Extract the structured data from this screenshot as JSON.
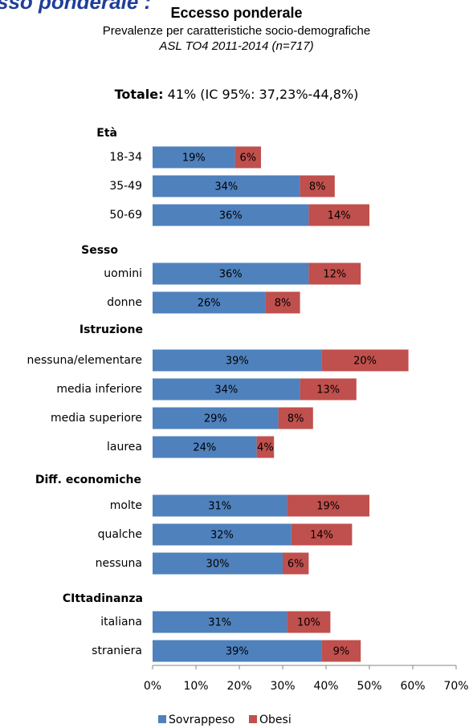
{
  "banner": "sso ponderale :",
  "chart_data": {
    "type": "bar",
    "orientation": "horizontal",
    "stacked": true,
    "title": "Eccesso ponderale",
    "subtitle": "Prevalenze per caratteristiche socio-demografiche",
    "subtitle2": "ASL TO4 2011-2014 (n=717)",
    "total_label": "Totale:",
    "total_value": "41% (IC 95%: 37,23%-44,8%)",
    "xlim": [
      0,
      70
    ],
    "x_ticks": [
      "0%",
      "10%",
      "20%",
      "30%",
      "40%",
      "50%",
      "60%",
      "70%"
    ],
    "legend_position": "bottom",
    "series": [
      {
        "name": "Sovrappeso",
        "color": "#4f81bd"
      },
      {
        "name": "Obesi",
        "color": "#c0504d"
      }
    ],
    "groups": [
      {
        "name": "Età",
        "rows": [
          {
            "label": "18-34",
            "values": [
              19,
              6
            ]
          },
          {
            "label": "35-49",
            "values": [
              34,
              8
            ]
          },
          {
            "label": "50-69",
            "values": [
              36,
              14
            ]
          }
        ]
      },
      {
        "name": "Sesso",
        "rows": [
          {
            "label": "uomini",
            "values": [
              36,
              12
            ]
          },
          {
            "label": "donne",
            "values": [
              26,
              8
            ]
          }
        ]
      },
      {
        "name": "Istruzione",
        "rows": [
          {
            "label": "nessuna/elementare",
            "values": [
              39,
              20
            ]
          },
          {
            "label": "media inferiore",
            "values": [
              34,
              13
            ]
          },
          {
            "label": "media superiore",
            "values": [
              29,
              8
            ]
          },
          {
            "label": "laurea",
            "values": [
              24,
              4
            ]
          }
        ]
      },
      {
        "name": "Diff. economiche",
        "rows": [
          {
            "label": "molte",
            "values": [
              31,
              19
            ]
          },
          {
            "label": "qualche",
            "values": [
              32,
              14
            ]
          },
          {
            "label": "nessuna",
            "values": [
              30,
              6
            ]
          }
        ]
      },
      {
        "name": "CIttadinanza",
        "rows": [
          {
            "label": "italiana",
            "values": [
              31,
              10
            ]
          },
          {
            "label": "straniera",
            "values": [
              39,
              9
            ]
          }
        ]
      }
    ]
  }
}
